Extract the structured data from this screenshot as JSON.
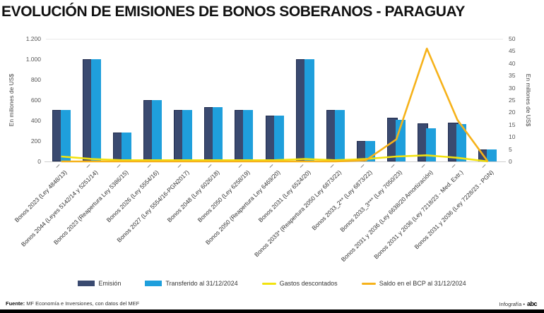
{
  "title": "EVOLUCIÓN DE EMISIONES DE BONOS SOBERANOS - PARAGUAY",
  "chart_data": {
    "type": "bar",
    "title": "EVOLUCIÓN DE EMISIONES DE BONOS SOBERANOS - PARAGUAY",
    "left_axis": {
      "label": "En millones de US$",
      "ticks": [
        "0",
        "200",
        "400",
        "600",
        "800",
        "1.000",
        "1.200"
      ],
      "min": 0,
      "max": 1200,
      "grid": false
    },
    "right_axis": {
      "label": "En millones de US$",
      "ticks": [
        "0",
        "5",
        "10",
        "15",
        "20",
        "25",
        "30",
        "35",
        "40",
        "45",
        "50"
      ],
      "min": 0,
      "max": 50,
      "grid": false
    },
    "legend_position": "bottom",
    "categories": [
      "Bonos 2023 (Ley 4848/13)",
      "Bonos 2044 (Leyes 5142/14 y 5251/14)",
      "Bonos 2023 (Reapertura Ley 5386/15)",
      "Bonos 2026 (Ley 5554/16)",
      "Bonos 2027 (Ley 5554/16-PGN2017)",
      "Bonos 2048 (Ley 6026/18)",
      "Bonos 2050 (Ley 6258/19)",
      "Bonos 2050 (Reapertura Ley 6469/20)",
      "Bonos 2031 (Ley 6524/20)",
      "Bonos 2033* (Reapertura 2050 Ley 6873/22)",
      "Bonos 2033_2** (Ley 6873/22)",
      "Bonos 2033_3*** (Ley 7050/23)",
      "Bonos 2031 y 2036 (Ley 6638/20 Amortización)",
      "Bonos 2031 y 2036 (Ley 7218/23 - Med. Extr.)",
      "Bonos 2031 y 2036 (Ley 7228/23 - PGN)"
    ],
    "series": [
      {
        "name": "Emisión",
        "type": "bar",
        "axis": "left",
        "color": "#3a4a70",
        "values": [
          500,
          1000,
          280,
          600,
          500,
          530,
          500,
          450,
          1000,
          500,
          200,
          430,
          375,
          380,
          120
        ]
      },
      {
        "name": "Transferido al 31/12/2024",
        "type": "bar",
        "axis": "left",
        "color": "#1f9fdc",
        "values": [
          500,
          1000,
          280,
          600,
          500,
          530,
          500,
          450,
          1000,
          500,
          200,
          410,
          325,
          365,
          120
        ]
      },
      {
        "name": "Gastos descontados",
        "type": "line",
        "axis": "right",
        "color": "#f2e20e",
        "values": [
          2,
          1,
          0.5,
          0.5,
          0.5,
          0.5,
          0.5,
          0.5,
          1,
          0.5,
          1,
          2,
          2.5,
          1.5,
          0
        ]
      },
      {
        "name": "Saldo en el BCP al 31/12/2024",
        "type": "line",
        "axis": "right",
        "color": "#f6b21a",
        "values": [
          0,
          0,
          0,
          0,
          0,
          0,
          0,
          0,
          0,
          0,
          0.5,
          9,
          46,
          17,
          0
        ]
      }
    ]
  },
  "footer": {
    "source_label": "Fuente:",
    "source_text": "MF Economía e Inversiones, con datos del MEF",
    "credit_text": "Infografía •",
    "brand": "abc"
  }
}
